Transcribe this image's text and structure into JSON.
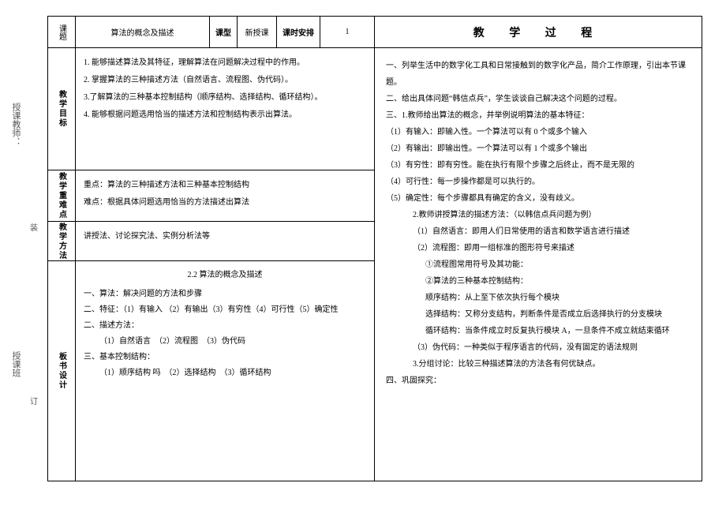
{
  "sidebar": {
    "label1": "授课教师：",
    "label2": "授课班",
    "bind1": "装",
    "bind2": "订"
  },
  "header": {
    "topic_lbl": "课题",
    "topic": "算法的概念及描述",
    "type_lbl": "课型",
    "type": "新授课",
    "sched_lbl": "课时安排",
    "sched": "1"
  },
  "goals": {
    "label": "教学目标",
    "items": [
      "1. 能够描述算法及其特征，理解算法在问题解决过程中的作用。",
      "2. 掌握算法的三种描述方法（自然语言、流程图、伪代码）。",
      "3.了解算法的三种基本控制结构（顺序结构、选择结构、循环结构）。",
      "4. 能够根据问题选用恰当的描述方法和控制结构表示出算法。"
    ]
  },
  "emph": {
    "label": "教学重难点",
    "l1": "重点：算法的三种描述方法和三种基本控制结构",
    "l2": "难点：根据具体问题选用恰当的方法描述出算法"
  },
  "method": {
    "label": "教学方法",
    "text": "讲授法、讨论探究法、实例分析法等"
  },
  "board": {
    "label": "板书设计",
    "title": "2.2 算法的概念及描述",
    "lines": [
      "一、算法：解决问题的方法和步骤",
      "二、特征：（1）有输入 （2）有输出（3）有穷性（4）可行性（5）确定性",
      "二、描述方法：",
      "（1）自然语言　（2）流程图　（3）伪代码",
      "三、基本控制结构：",
      "（1）顺序结构  吗　（2）选择结构　（3）循环结构"
    ]
  },
  "proc": {
    "title": "教 学 过 程",
    "lines": [
      {
        "cls": "ri1",
        "t": "一、列举生活中的数字化工具和日常接触到的数字化产品，简介工作原理，引出本节课题。"
      },
      {
        "cls": "ri1",
        "t": "二、给出具体问题“韩信点兵”，学生谈谈自己解决这个问题的过程。"
      },
      {
        "cls": "ri1",
        "t": "三、1.教师给出算法的概念，并举例说明算法的基本特征："
      },
      {
        "cls": "ri1",
        "t": "（1）有输入：即输入性。一个算法可以有 0 个或多个输入"
      },
      {
        "cls": "ri1",
        "t": "（2）有输出：即输出性。一个算法可以有 1 个或多个输出"
      },
      {
        "cls": "ri1",
        "t": "（3）有穷性：即有穷性。能在执行有限个步骤之后终止，而不是无限的"
      },
      {
        "cls": "ri1",
        "t": "（4）可行性：每一步操作都是可以执行的。"
      },
      {
        "cls": "ri1",
        "t": "（5）确定性：每个步骤都具有确定的含义，没有歧义。"
      },
      {
        "cls": "ri2",
        "t": "2.教师讲授算法的描述方法：（以韩信点兵问题为例）"
      },
      {
        "cls": "ri2",
        "t": "（1）自然语言：即用人们日常使用的语言和数学语言进行描述"
      },
      {
        "cls": "ri2",
        "t": "（2）流程图：即用一组标准的图形符号来描述"
      },
      {
        "cls": "ri3",
        "t": "①流程图常用符号及其功能："
      },
      {
        "cls": "ri3",
        "t": "②算法的三种基本控制结构："
      },
      {
        "cls": "ri3",
        "t": "顺序结构：从上至下依次执行每个模块"
      },
      {
        "cls": "ri3",
        "t": "选择结构：又称分支结构，判断条件是否成立后选择执行的分支模块"
      },
      {
        "cls": "ri3",
        "t": "循环结构：当条件成立时反复执行模块 A，一旦条件不成立就结束循环"
      },
      {
        "cls": "ri2",
        "t": "（3）伪代码：一种类似于程序语言的代码，没有固定的语法规则"
      },
      {
        "cls": "ri2",
        "t": "3.分组讨论：比较三种描述算法的方法各有何优缺点。"
      },
      {
        "cls": "ri1",
        "t": "四、巩固探究："
      }
    ]
  }
}
